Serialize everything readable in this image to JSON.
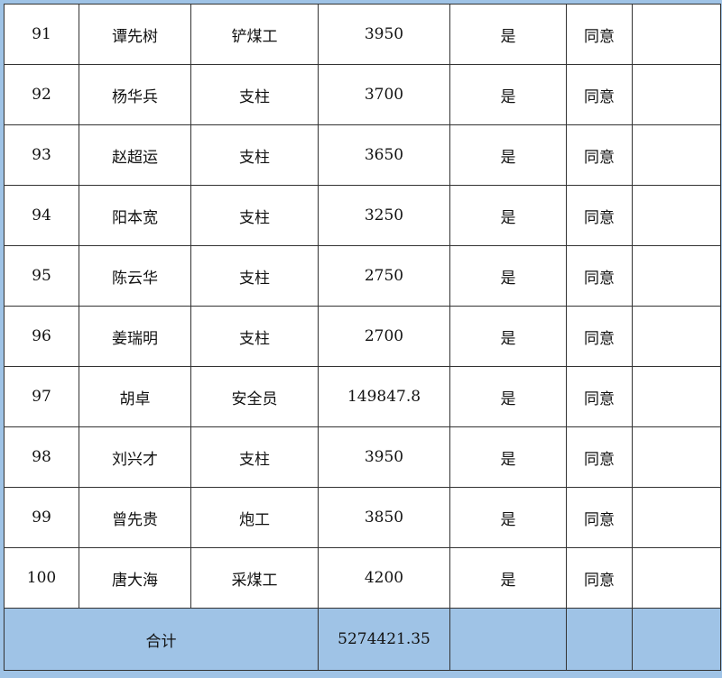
{
  "rows": [
    [
      "91",
      "谭先树",
      "铲煤工",
      "3950",
      "是",
      "同意",
      ""
    ],
    [
      "92",
      "杨华兵",
      "支柱",
      "3700",
      "是",
      "同意",
      ""
    ],
    [
      "93",
      "赵超运",
      "支柱",
      "3650",
      "是",
      "同意",
      ""
    ],
    [
      "94",
      "阳本宽",
      "支柱",
      "3250",
      "是",
      "同意",
      ""
    ],
    [
      "95",
      "陈云华",
      "支柱",
      "2750",
      "是",
      "同意",
      ""
    ],
    [
      "96",
      "姜瑞明",
      "支柱",
      "2700",
      "是",
      "同意",
      ""
    ],
    [
      "97",
      "胡卓",
      "安全员",
      "149847.8",
      "是",
      "同意",
      ""
    ],
    [
      "98",
      "刘兴才",
      "支柱",
      "3950",
      "是",
      "同意",
      ""
    ],
    [
      "99",
      "曾先贵",
      "炮工",
      "3850",
      "是",
      "同意",
      ""
    ],
    [
      "100",
      "唐大海",
      "采煤工",
      "4200",
      "是",
      "同意",
      ""
    ]
  ],
  "total": {
    "label": "合计",
    "amount": "5274421.35"
  },
  "colors": {
    "total_row_bg": "#9fc3e6",
    "border": "#333333"
  }
}
